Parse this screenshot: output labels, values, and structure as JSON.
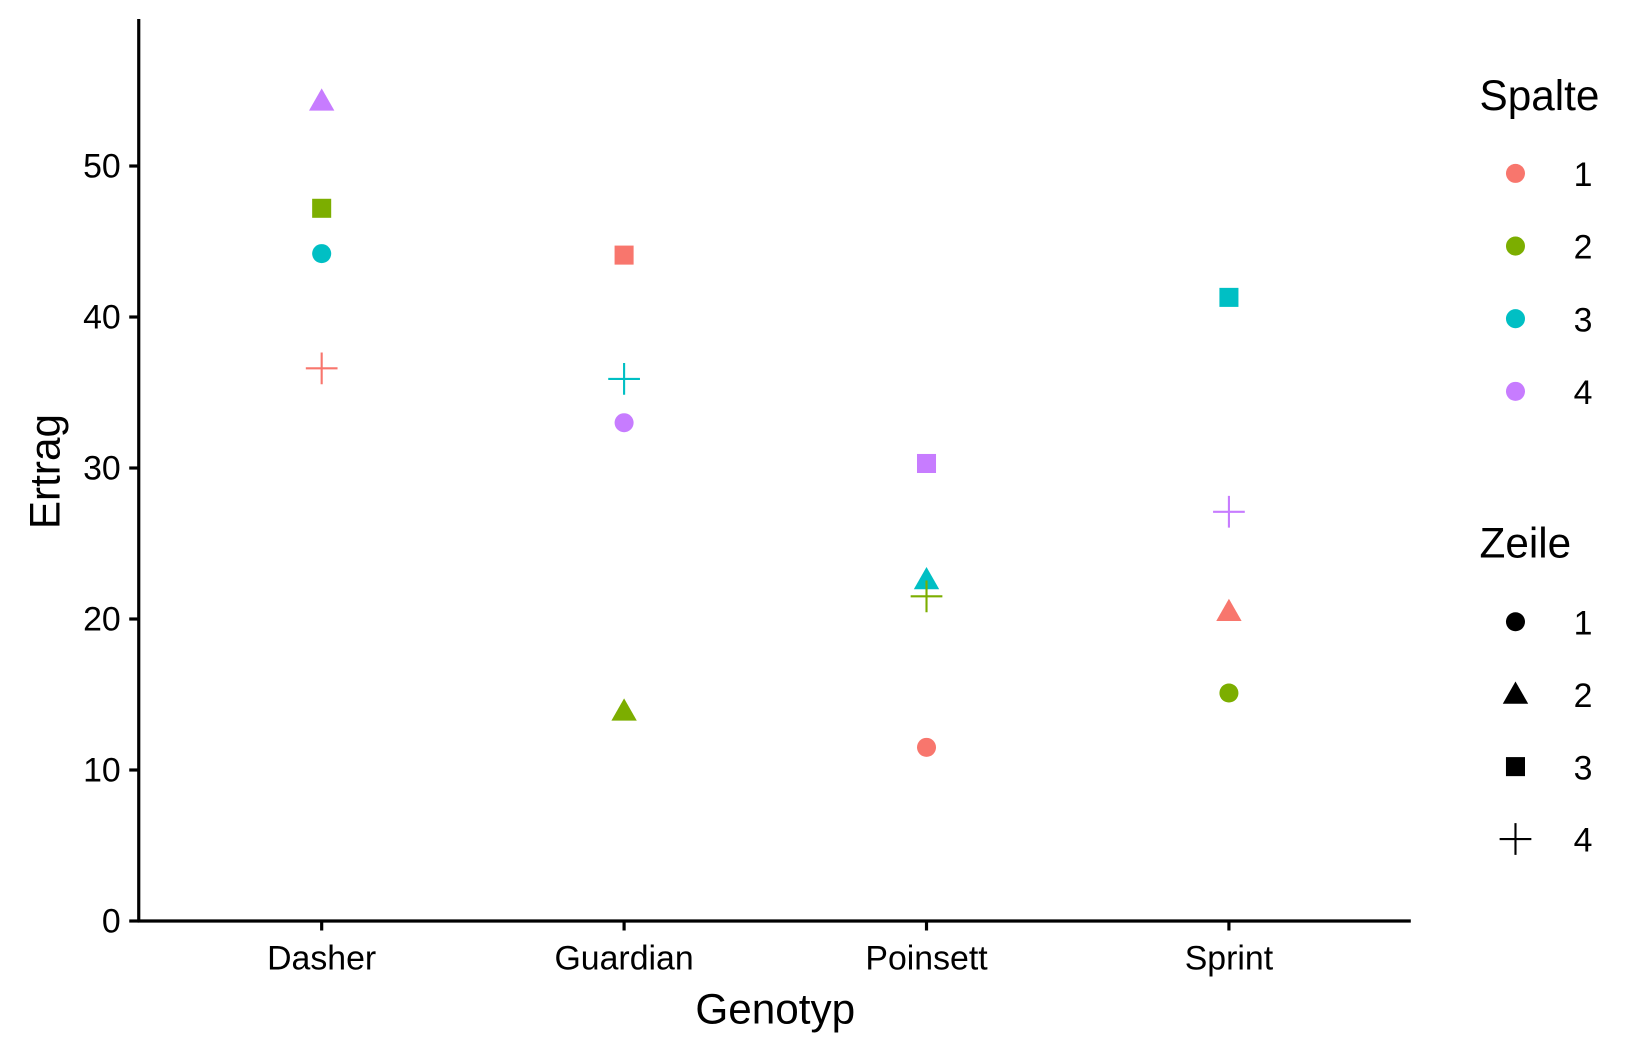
{
  "chart_data": {
    "type": "scatter",
    "xlabel": "Genotyp",
    "ylabel": "Ertrag",
    "categories": [
      "Dasher",
      "Guardian",
      "Poinsett",
      "Sprint"
    ],
    "ylim": [
      0,
      59.5
    ],
    "yticks": [
      0,
      10,
      20,
      30,
      40,
      50
    ],
    "grid": false,
    "legend_position": "right",
    "color_legend": {
      "title": "Spalte",
      "levels": [
        "1",
        "2",
        "3",
        "4"
      ],
      "colors": [
        "#F8766D",
        "#7CAE00",
        "#00BFC4",
        "#C77CFF"
      ]
    },
    "shape_legend": {
      "title": "Zeile",
      "levels": [
        "1",
        "2",
        "3",
        "4"
      ],
      "shapes": [
        "circle",
        "triangle",
        "square",
        "plus"
      ]
    },
    "points": [
      {
        "genotyp": "Dasher",
        "spalte": "4",
        "zeile": "2",
        "ertrag": 54.3
      },
      {
        "genotyp": "Dasher",
        "spalte": "2",
        "zeile": "3",
        "ertrag": 47.2
      },
      {
        "genotyp": "Dasher",
        "spalte": "3",
        "zeile": "1",
        "ertrag": 44.2
      },
      {
        "genotyp": "Dasher",
        "spalte": "1",
        "zeile": "4",
        "ertrag": 36.6
      },
      {
        "genotyp": "Guardian",
        "spalte": "1",
        "zeile": "3",
        "ertrag": 44.1
      },
      {
        "genotyp": "Guardian",
        "spalte": "3",
        "zeile": "4",
        "ertrag": 35.9
      },
      {
        "genotyp": "Guardian",
        "spalte": "4",
        "zeile": "1",
        "ertrag": 33.0
      },
      {
        "genotyp": "Guardian",
        "spalte": "2",
        "zeile": "2",
        "ertrag": 13.9
      },
      {
        "genotyp": "Poinsett",
        "spalte": "4",
        "zeile": "3",
        "ertrag": 30.3
      },
      {
        "genotyp": "Poinsett",
        "spalte": "3",
        "zeile": "2",
        "ertrag": 22.6
      },
      {
        "genotyp": "Poinsett",
        "spalte": "2",
        "zeile": "4",
        "ertrag": 21.5
      },
      {
        "genotyp": "Poinsett",
        "spalte": "1",
        "zeile": "1",
        "ertrag": 11.5
      },
      {
        "genotyp": "Sprint",
        "spalte": "3",
        "zeile": "3",
        "ertrag": 41.3
      },
      {
        "genotyp": "Sprint",
        "spalte": "4",
        "zeile": "4",
        "ertrag": 27.1
      },
      {
        "genotyp": "Sprint",
        "spalte": "1",
        "zeile": "2",
        "ertrag": 20.5
      },
      {
        "genotyp": "Sprint",
        "spalte": "2",
        "zeile": "1",
        "ertrag": 15.1
      }
    ]
  }
}
